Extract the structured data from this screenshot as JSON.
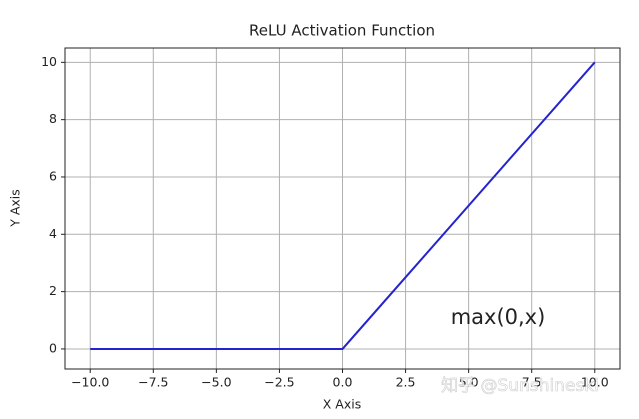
{
  "chart_data": {
    "type": "line",
    "title": "ReLU Activation Function",
    "x_label": "X Axis",
    "y_label": "Y Axis",
    "x": [
      -10,
      0,
      10
    ],
    "series": [
      {
        "name": "ReLU",
        "color": "#2323d0",
        "values": [
          0,
          0,
          10
        ]
      }
    ],
    "xlim": [
      -11,
      11
    ],
    "ylim": [
      -0.7,
      10.5
    ],
    "xticks": [
      {
        "value": -10,
        "label": "−10.0"
      },
      {
        "value": -7.5,
        "label": "−7.5"
      },
      {
        "value": -5,
        "label": "−5.0"
      },
      {
        "value": -2.5,
        "label": "−2.5"
      },
      {
        "value": 0,
        "label": "0.0"
      },
      {
        "value": 2.5,
        "label": "2.5"
      },
      {
        "value": 5,
        "label": "5.0"
      },
      {
        "value": 7.5,
        "label": "7.5"
      },
      {
        "value": 10,
        "label": "10.0"
      }
    ],
    "yticks": [
      0,
      2,
      4,
      6,
      8,
      10
    ],
    "grid": true,
    "annotation": "max(0,x)",
    "watermark": "知乎 @Sunshineski"
  }
}
